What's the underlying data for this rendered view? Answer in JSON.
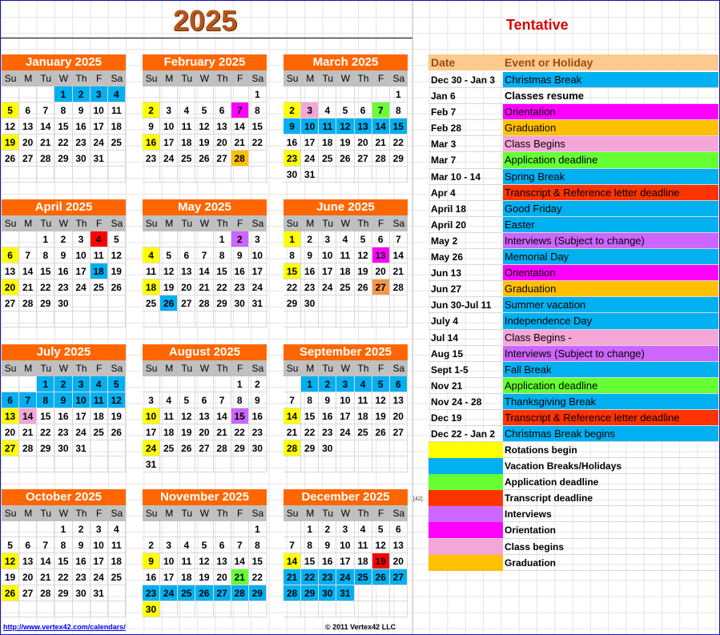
{
  "title": {
    "year": "2025",
    "status": "Tentative"
  },
  "dow": [
    "Su",
    "M",
    "Tu",
    "W",
    "Th",
    "F",
    "Sa"
  ],
  "colors": {
    "yellow": "#ffff00",
    "blue": "#00b0f0",
    "green": "#66ff33",
    "red": "#ff3300",
    "purple": "#cc66ff",
    "magenta": "#ff00ff",
    "pink": "#f4a6d7",
    "orange": "#ffc000",
    "lightorange": "#f79646",
    "darkred": "#ff0000"
  },
  "months": [
    {
      "name": "January 2025",
      "start": 3,
      "days": 31,
      "colored": {
        "1": "blue",
        "2": "blue",
        "3": "blue",
        "4": "blue",
        "5": "yellow",
        "19": "yellow"
      }
    },
    {
      "name": "February 2025",
      "start": 6,
      "days": 28,
      "colored": {
        "2": "yellow",
        "7": "magenta",
        "16": "yellow",
        "28": "orange"
      }
    },
    {
      "name": "March 2025",
      "start": 6,
      "days": 31,
      "colored": {
        "2": "yellow",
        "3": "pink",
        "7": "green",
        "9": "blue",
        "10": "blue",
        "11": "blue",
        "12": "blue",
        "13": "blue",
        "14": "blue",
        "15": "blue",
        "23": "yellow"
      }
    },
    {
      "name": "April 2025",
      "start": 2,
      "days": 30,
      "colored": {
        "4": "darkred",
        "6": "yellow",
        "18": "blue",
        "20": "yellow"
      }
    },
    {
      "name": "May 2025",
      "start": 4,
      "days": 31,
      "colored": {
        "2": "purple",
        "4": "yellow",
        "18": "yellow",
        "26": "blue"
      }
    },
    {
      "name": "June 2025",
      "start": 0,
      "days": 30,
      "colored": {
        "1": "yellow",
        "13": "magenta",
        "15": "yellow",
        "27": "lightorange"
      }
    },
    {
      "name": "July 2025",
      "start": 2,
      "days": 31,
      "colored": {
        "1": "blue",
        "2": "blue",
        "3": "blue",
        "4": "blue",
        "5": "blue",
        "6": "blue",
        "7": "blue",
        "8": "blue",
        "9": "blue",
        "10": "blue",
        "11": "blue",
        "12": "blue",
        "13": "yellow",
        "14": "pink",
        "27": "yellow"
      }
    },
    {
      "name": "August 2025",
      "start": 5,
      "days": 31,
      "colored": {
        "10": "yellow",
        "15": "purple",
        "24": "yellow"
      }
    },
    {
      "name": "September 2025",
      "start": 1,
      "days": 30,
      "colored": {
        "1": "blue",
        "2": "blue",
        "3": "blue",
        "4": "blue",
        "5": "blue",
        "6": "blue",
        "14": "yellow",
        "28": "yellow"
      }
    },
    {
      "name": "October 2025",
      "start": 3,
      "days": 31,
      "colored": {
        "12": "yellow",
        "26": "yellow"
      }
    },
    {
      "name": "November 2025",
      "start": 6,
      "days": 30,
      "colored": {
        "9": "yellow",
        "21": "green",
        "23": "blue",
        "24": "blue",
        "25": "blue",
        "26": "blue",
        "27": "blue",
        "28": "blue",
        "29": "blue",
        "30": "yellow"
      }
    },
    {
      "name": "December 2025",
      "start": 1,
      "days": 31,
      "colored": {
        "14": "yellow",
        "19": "darkred",
        "21": "blue",
        "22": "blue",
        "23": "blue",
        "24": "blue",
        "25": "blue",
        "26": "blue",
        "27": "blue",
        "28": "blue",
        "29": "blue",
        "30": "blue",
        "31": "blue"
      }
    }
  ],
  "events_header": {
    "date": "Date",
    "event": "Event or Holiday"
  },
  "events": [
    {
      "date": "Dec 30 - Jan 3",
      "event": "Christmas Break",
      "color": "blue"
    },
    {
      "date": "Jan 6",
      "event": "Classes resume",
      "color": "none"
    },
    {
      "date": "Feb 7",
      "event": "Orientation",
      "color": "magenta"
    },
    {
      "date": "Feb 28",
      "event": "Graduation",
      "color": "orange"
    },
    {
      "date": "Mar 3",
      "event": "Class Begins",
      "color": "pink"
    },
    {
      "date": "Mar 7",
      "event": "Application deadline",
      "color": "green"
    },
    {
      "date": "Mar 10 - 14",
      "event": "Spring Break",
      "color": "blue"
    },
    {
      "date": "Apr 4",
      "event": "Transcript & Reference letter deadline",
      "color": "red"
    },
    {
      "date": "April 18",
      "event": "Good Friday",
      "color": "blue"
    },
    {
      "date": "April 20",
      "event": "Easter",
      "color": "blue"
    },
    {
      "date": "May 2",
      "event": "Interviews (Subject to change)",
      "color": "purple"
    },
    {
      "date": "May 26",
      "event": "Memorial Day",
      "color": "blue"
    },
    {
      "date": "Jun 13",
      "event": "Orientation",
      "color": "magenta"
    },
    {
      "date": "Jun 27",
      "event": "Graduation",
      "color": "orange"
    },
    {
      "date": "Jun 30-Jul 11",
      "event": "Summer vacation",
      "color": "blue"
    },
    {
      "date": "July 4",
      "event": "Independence Day",
      "color": "blue"
    },
    {
      "date": "Jul 14",
      "event": "Class Begins -",
      "color": "pink"
    },
    {
      "date": "Aug 15",
      "event": "Interviews (Subject to change)",
      "color": "purple"
    },
    {
      "date": "Sept 1-5",
      "event": "Fall Break",
      "color": "blue"
    },
    {
      "date": "Nov 21",
      "event": "Application deadline",
      "color": "green"
    },
    {
      "date": "Nov 24 - 28",
      "event": "Thanksgiving Break",
      "color": "blue"
    },
    {
      "date": "Dec 19",
      "event": "Transcript & Reference letter deadline",
      "color": "red"
    },
    {
      "date": "Dec 22 - Jan 2",
      "event": "Christmas Break begins",
      "color": "blue"
    }
  ],
  "legend": [
    {
      "label": "Rotations begin",
      "color": "yellow"
    },
    {
      "label": "Vacation Breaks/Holidays",
      "color": "blue"
    },
    {
      "label": "Application deadline",
      "color": "green"
    },
    {
      "label": "Transcript deadline",
      "color": "red"
    },
    {
      "label": "Interviews",
      "color": "purple"
    },
    {
      "label": "Orientation",
      "color": "magenta"
    },
    {
      "label": "Class begins",
      "color": "pink"
    },
    {
      "label": "Graduation",
      "color": "orange"
    }
  ],
  "footer": {
    "link": "http://www.vertex42.com/calendars/",
    "copyright": "© 2011 Vertex42 LLC",
    "note": "[42]"
  }
}
